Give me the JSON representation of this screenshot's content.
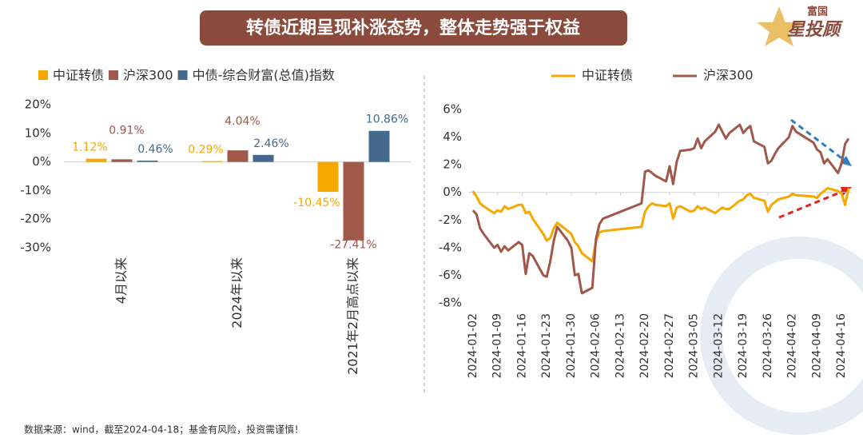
{
  "header": {
    "title": "转债近期呈现补涨态势，整体走势强于权益",
    "logo_top": "富国",
    "logo_bottom": "星投顾"
  },
  "footer": "数据来源：wind，截至2024-04-18；基金有风险，投资需谨慎！",
  "chart_data": [
    {
      "type": "bar",
      "categories": [
        "4月以来",
        "2024年以来",
        "2021年2月高点以来"
      ],
      "series": [
        {
          "name": "中证转债",
          "color": "#f5a800",
          "values": [
            1.12,
            0.29,
            -10.45
          ],
          "value_labels": [
            "1.12%",
            "0.29%",
            "-10.45%"
          ]
        },
        {
          "name": "沪深300",
          "color": "#a0584a",
          "values": [
            0.91,
            4.04,
            -27.41
          ],
          "value_labels": [
            "0.91%",
            "4.04%",
            "-27.41%"
          ]
        },
        {
          "name": "中债-综合财富(总值)指数",
          "color": "#44698c",
          "values": [
            0.46,
            2.46,
            10.86
          ],
          "value_labels": [
            "0.46%",
            "2.46%",
            "10.86%"
          ]
        }
      ],
      "ylim": [
        -30,
        20
      ],
      "yticks": [
        {
          "value": 20,
          "label": "20%"
        },
        {
          "value": 10,
          "label": "10%"
        },
        {
          "value": 0,
          "label": "0%"
        },
        {
          "value": -10,
          "label": "-10%"
        },
        {
          "value": -20,
          "label": "-20%"
        },
        {
          "value": -30,
          "label": "-30%"
        }
      ],
      "legend": "top"
    },
    {
      "type": "line",
      "x": [
        "2024-01-02",
        "2024-01-03",
        "2024-01-04",
        "2024-01-05",
        "2024-01-08",
        "2024-01-09",
        "2024-01-10",
        "2024-01-11",
        "2024-01-12",
        "2024-01-15",
        "2024-01-16",
        "2024-01-17",
        "2024-01-18",
        "2024-01-19",
        "2024-01-22",
        "2024-01-23",
        "2024-01-24",
        "2024-01-25",
        "2024-01-26",
        "2024-01-29",
        "2024-01-30",
        "2024-01-31",
        "2024-02-01",
        "2024-02-02",
        "2024-02-05",
        "2024-02-06",
        "2024-02-07",
        "2024-02-08",
        "2024-02-19",
        "2024-02-20",
        "2024-02-21",
        "2024-02-22",
        "2024-02-23",
        "2024-02-26",
        "2024-02-27",
        "2024-02-28",
        "2024-02-29",
        "2024-03-01",
        "2024-03-04",
        "2024-03-05",
        "2024-03-06",
        "2024-03-07",
        "2024-03-08",
        "2024-03-11",
        "2024-03-12",
        "2024-03-13",
        "2024-03-14",
        "2024-03-15",
        "2024-03-18",
        "2024-03-19",
        "2024-03-20",
        "2024-03-21",
        "2024-03-22",
        "2024-03-25",
        "2024-03-26",
        "2024-03-27",
        "2024-03-28",
        "2024-03-29",
        "2024-04-01",
        "2024-04-02",
        "2024-04-03",
        "2024-04-08",
        "2024-04-09",
        "2024-04-10",
        "2024-04-11",
        "2024-04-12",
        "2024-04-15",
        "2024-04-16",
        "2024-04-17",
        "2024-04-18"
      ],
      "series": [
        {
          "name": "中证转债",
          "color": "#f5a800",
          "values": [
            0.1,
            -0.3,
            -0.8,
            -1.0,
            -1.5,
            -1.3,
            -1.4,
            -1.0,
            -1.2,
            -0.9,
            -0.9,
            -1.5,
            -1.4,
            -1.9,
            -3.0,
            -3.5,
            -3.3,
            -2.6,
            -2.2,
            -2.8,
            -3.0,
            -3.6,
            -3.9,
            -4.4,
            -5.0,
            -3.6,
            -2.9,
            -2.8,
            -2.5,
            -1.4,
            -1.0,
            -0.8,
            -0.9,
            -1.0,
            -0.8,
            -1.9,
            -1.1,
            -1.0,
            -1.4,
            -1.3,
            -1.0,
            -1.2,
            -1.1,
            -1.5,
            -1.3,
            -1.1,
            -1.2,
            -1.2,
            -0.6,
            -0.5,
            -0.2,
            -0.1,
            -0.4,
            -0.6,
            -1.4,
            -0.9,
            -0.7,
            -0.5,
            -0.3,
            -0.1,
            -0.2,
            -0.3,
            -0.4,
            -0.1,
            0.1,
            0.3,
            0.1,
            -0.1,
            -0.9,
            0.3
          ]
        },
        {
          "name": "沪深300",
          "color": "#a0584a",
          "values": [
            -1.3,
            -1.6,
            -2.6,
            -3.0,
            -4.0,
            -3.8,
            -4.3,
            -3.9,
            -4.2,
            -3.6,
            -3.8,
            -5.9,
            -4.4,
            -4.6,
            -6.0,
            -6.1,
            -5.0,
            -3.5,
            -2.5,
            -3.5,
            -4.0,
            -6.0,
            -5.9,
            -7.3,
            -6.9,
            -3.4,
            -2.3,
            -1.9,
            -0.8,
            1.5,
            1.6,
            1.4,
            1.2,
            0.8,
            1.9,
            0.6,
            2.2,
            3.0,
            3.1,
            3.2,
            3.9,
            3.2,
            3.7,
            4.4,
            4.9,
            4.4,
            3.9,
            4.3,
            4.9,
            4.3,
            4.6,
            4.8,
            3.7,
            3.3,
            2.1,
            2.3,
            2.8,
            3.2,
            4.0,
            4.8,
            4.4,
            3.6,
            3.1,
            2.9,
            2.1,
            2.4,
            1.4,
            2.1,
            3.5,
            3.9
          ]
        }
      ],
      "xlim": [
        "2024-01-02",
        "2024-04-18"
      ],
      "xticks": [
        "2024-01-02",
        "2024-01-09",
        "2024-01-16",
        "2024-01-23",
        "2024-01-30",
        "2024-02-06",
        "2024-02-13",
        "2024-02-20",
        "2024-02-27",
        "2024-03-05",
        "2024-03-12",
        "2024-03-19",
        "2024-03-26",
        "2024-04-02",
        "2024-04-09",
        "2024-04-16"
      ],
      "ylim": [
        -8,
        6
      ],
      "yticks": [
        {
          "value": -8,
          "label": "-8%"
        },
        {
          "value": -6,
          "label": "-6%"
        },
        {
          "value": -4,
          "label": "-4%"
        },
        {
          "value": -2,
          "label": "-2%"
        },
        {
          "value": 0,
          "label": "0%"
        },
        {
          "value": 2,
          "label": "2%"
        },
        {
          "value": 4,
          "label": "4%"
        },
        {
          "value": 6,
          "label": "6%"
        }
      ],
      "legend": "top"
    }
  ]
}
